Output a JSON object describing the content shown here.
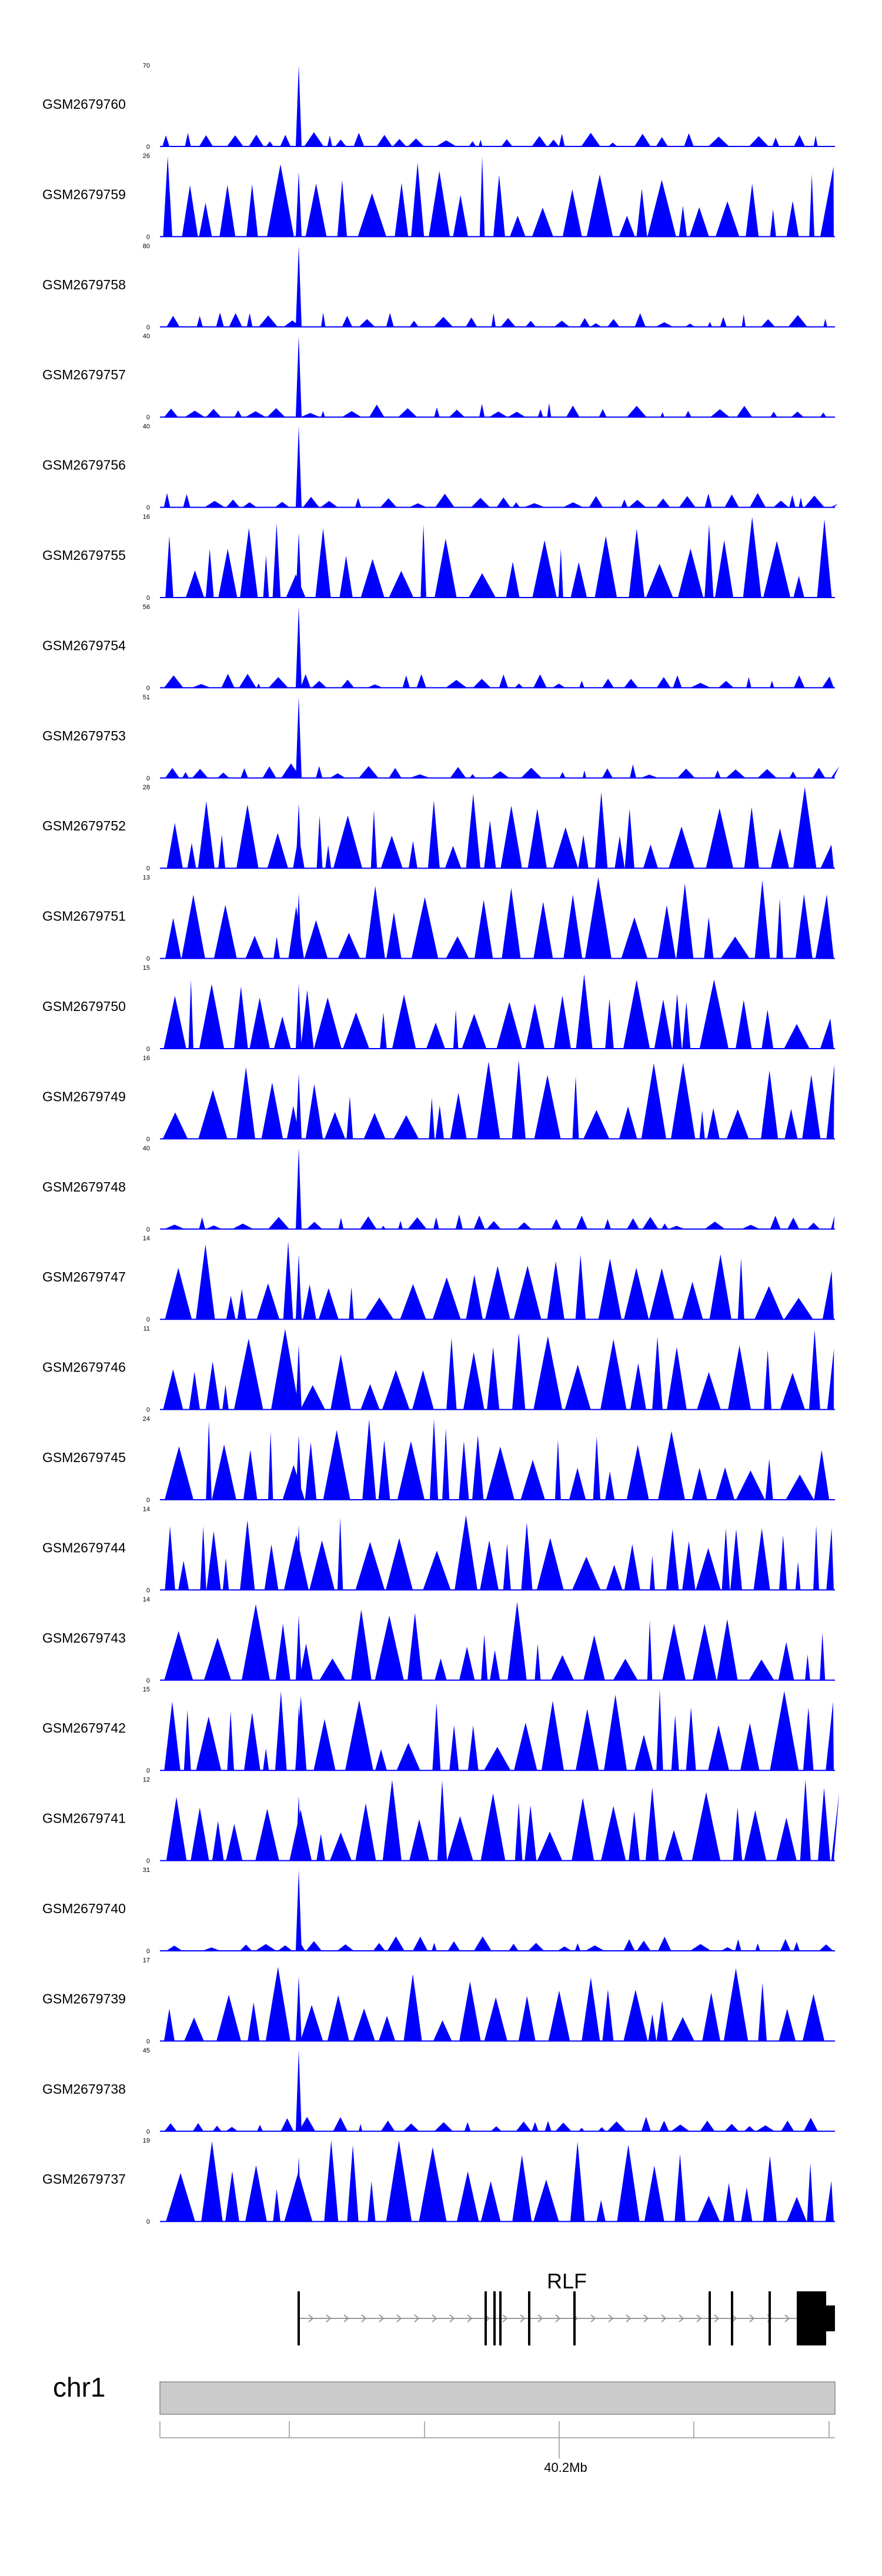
{
  "chart_data": {
    "type": "area",
    "title": "",
    "x_axis": {
      "label": "40.2Mb",
      "label_value": 40.2
    },
    "track_color": "#0000ff",
    "tracks": [
      {
        "name": "GSM2679760",
        "ymax": "70",
        "ymin": "0"
      },
      {
        "name": "GSM2679759",
        "ymax": "26",
        "ymin": "0"
      },
      {
        "name": "GSM2679758",
        "ymax": "80",
        "ymin": "0"
      },
      {
        "name": "GSM2679757",
        "ymax": "40",
        "ymin": "0"
      },
      {
        "name": "GSM2679756",
        "ymax": "40",
        "ymin": "0"
      },
      {
        "name": "GSM2679755",
        "ymax": "16",
        "ymin": "0"
      },
      {
        "name": "GSM2679754",
        "ymax": "56",
        "ymin": "0"
      },
      {
        "name": "GSM2679753",
        "ymax": "51",
        "ymin": "0"
      },
      {
        "name": "GSM2679752",
        "ymax": "28",
        "ymin": "0"
      },
      {
        "name": "GSM2679751",
        "ymax": "13",
        "ymin": "0"
      },
      {
        "name": "GSM2679750",
        "ymax": "15",
        "ymin": "0"
      },
      {
        "name": "GSM2679749",
        "ymax": "16",
        "ymin": "0"
      },
      {
        "name": "GSM2679748",
        "ymax": "40",
        "ymin": "0"
      },
      {
        "name": "GSM2679747",
        "ymax": "14",
        "ymin": "0"
      },
      {
        "name": "GSM2679746",
        "ymax": "11",
        "ymin": "0"
      },
      {
        "name": "GSM2679745",
        "ymax": "24",
        "ymin": "0"
      },
      {
        "name": "GSM2679744",
        "ymax": "14",
        "ymin": "0"
      },
      {
        "name": "GSM2679743",
        "ymax": "14",
        "ymin": "0"
      },
      {
        "name": "GSM2679742",
        "ymax": "15",
        "ymin": "0"
      },
      {
        "name": "GSM2679741",
        "ymax": "12",
        "ymin": "0"
      },
      {
        "name": "GSM2679740",
        "ymax": "31",
        "ymin": "0"
      },
      {
        "name": "GSM2679739",
        "ymax": "17",
        "ymin": "0"
      },
      {
        "name": "GSM2679738",
        "ymax": "45",
        "ymin": "0"
      },
      {
        "name": "GSM2679737",
        "ymax": "19",
        "ymin": "0"
      }
    ],
    "gene_track": {
      "gene": "RLF",
      "strand": "+",
      "exon_color": "#000000",
      "intron_color": "#999999"
    },
    "ideogram": {
      "chromosome": "chr1",
      "color": "#cccccc"
    }
  }
}
